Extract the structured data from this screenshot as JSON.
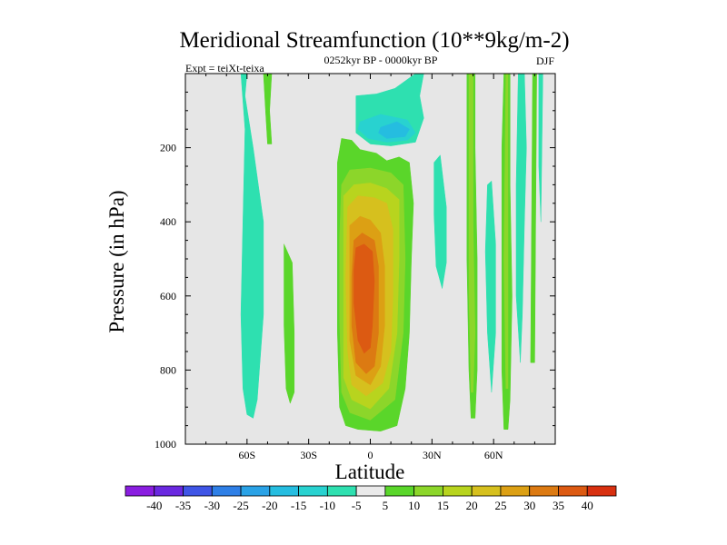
{
  "chart_data": {
    "type": "heatmap",
    "title": "Meridional Streamfunction (10**9kg/m-2)",
    "subtitle": "0252kyr BP - 0000kyr BP",
    "left_label": "Expt = teiXt-teixa",
    "right_label": "DJF",
    "xlabel": "Latitude",
    "ylabel": "Pressure (in hPa)",
    "xlim": [
      -90,
      90
    ],
    "ylim": [
      0,
      1000
    ],
    "y_reversed": true,
    "x_ticks": [
      {
        "value": -60,
        "label": "60S"
      },
      {
        "value": -30,
        "label": "30S"
      },
      {
        "value": 0,
        "label": "0"
      },
      {
        "value": 30,
        "label": "30N"
      },
      {
        "value": 60,
        "label": "60N"
      }
    ],
    "y_ticks": [
      {
        "value": 200,
        "label": "200"
      },
      {
        "value": 400,
        "label": "400"
      },
      {
        "value": 600,
        "label": "600"
      },
      {
        "value": 800,
        "label": "800"
      },
      {
        "value": 1000,
        "label": "1000"
      }
    ],
    "background_color": "#e6e6e6",
    "colorbar": {
      "levels": [
        "-40",
        "-35",
        "-30",
        "-25",
        "-20",
        "-15",
        "-10",
        "-5",
        "5",
        "10",
        "15",
        "20",
        "25",
        "30",
        "35",
        "40"
      ],
      "colors": [
        "#8a1ee0",
        "#6a28e0",
        "#3f55e6",
        "#2e7fe6",
        "#2aa2e6",
        "#25bde0",
        "#28d2d0",
        "#2ee0b0",
        "#eaeaea",
        "#5ad62a",
        "#8cd62a",
        "#b8d41e",
        "#d6c01e",
        "#dca014",
        "#dc7a12",
        "#dc5a12",
        "#d83010"
      ]
    },
    "contours": [
      {
        "level": -5,
        "color": "#2ee0b0",
        "polygon": [
          [
            -63,
            0
          ],
          [
            -60,
            0
          ],
          [
            -61,
            60
          ],
          [
            -57,
            200
          ],
          [
            -52,
            400
          ],
          [
            -52,
            650
          ],
          [
            -55,
            880
          ],
          [
            -57,
            930
          ],
          [
            -60,
            920
          ],
          [
            -62,
            850
          ],
          [
            -63,
            650
          ],
          [
            -62,
            400
          ],
          [
            -61,
            150
          ]
        ]
      },
      {
        "level": -5,
        "color": "#2ee0b0",
        "polygon": [
          [
            -7,
            60
          ],
          [
            3,
            55
          ],
          [
            12,
            40
          ],
          [
            22,
            0
          ],
          [
            26,
            0
          ],
          [
            24,
            60
          ],
          [
            26,
            120
          ],
          [
            22,
            185
          ],
          [
            10,
            195
          ],
          [
            0,
            190
          ],
          [
            -7,
            160
          ]
        ]
      },
      {
        "level": -10,
        "color": "#28d2d0",
        "polygon": [
          [
            -5,
            130
          ],
          [
            5,
            110
          ],
          [
            18,
            125
          ],
          [
            22,
            160
          ],
          [
            18,
            180
          ],
          [
            8,
            185
          ],
          [
            -1,
            175
          ],
          [
            -6,
            150
          ]
        ]
      },
      {
        "level": -15,
        "color": "#25bde0",
        "polygon": [
          [
            5,
            145
          ],
          [
            13,
            130
          ],
          [
            19,
            150
          ],
          [
            17,
            170
          ],
          [
            8,
            175
          ],
          [
            4,
            160
          ]
        ]
      },
      {
        "level": -5,
        "color": "#2ee0b0",
        "polygon": [
          [
            31,
            240
          ],
          [
            34,
            220
          ],
          [
            37,
            360
          ],
          [
            37,
            510
          ],
          [
            35,
            580
          ],
          [
            32,
            520
          ],
          [
            31,
            380
          ]
        ]
      },
      {
        "level": -5,
        "color": "#2ee0b0",
        "polygon": [
          [
            57,
            300
          ],
          [
            59,
            290
          ],
          [
            61,
            460
          ],
          [
            61,
            700
          ],
          [
            59,
            860
          ],
          [
            57,
            700
          ],
          [
            56,
            480
          ]
        ]
      },
      {
        "level": -5,
        "color": "#2ee0b0",
        "polygon": [
          [
            72,
            0
          ],
          [
            75,
            0
          ],
          [
            76,
            200
          ],
          [
            75,
            400
          ],
          [
            74,
            650
          ],
          [
            73,
            780
          ],
          [
            71,
            600
          ],
          [
            71,
            300
          ]
        ]
      },
      {
        "level": -5,
        "color": "#2ee0b0",
        "polygon": [
          [
            82,
            0
          ],
          [
            84,
            0
          ],
          [
            83,
            400
          ],
          [
            82,
            250
          ]
        ]
      },
      {
        "level": 5,
        "color": "#5ad62a",
        "polygon": [
          [
            -52,
            0
          ],
          [
            -48,
            0
          ],
          [
            -49,
            100
          ],
          [
            -48,
            190
          ],
          [
            -50,
            190
          ],
          [
            -51,
            100
          ]
        ]
      },
      {
        "level": 5,
        "color": "#5ad62a",
        "polygon": [
          [
            -42,
            460
          ],
          [
            -38,
            510
          ],
          [
            -37,
            700
          ],
          [
            -37,
            860
          ],
          [
            -39,
            890
          ],
          [
            -41,
            850
          ],
          [
            -42,
            680
          ]
        ]
      },
      {
        "level": 5,
        "color": "#5ad62a",
        "polygon": [
          [
            -16,
            240
          ],
          [
            -14,
            175
          ],
          [
            -9,
            180
          ],
          [
            -5,
            205
          ],
          [
            3,
            215
          ],
          [
            8,
            235
          ],
          [
            14,
            225
          ],
          [
            19,
            240
          ],
          [
            21,
            350
          ],
          [
            20,
            500
          ],
          [
            19,
            700
          ],
          [
            17,
            850
          ],
          [
            13,
            950
          ],
          [
            5,
            965
          ],
          [
            -6,
            960
          ],
          [
            -12,
            950
          ],
          [
            -15,
            900
          ],
          [
            -16,
            700
          ],
          [
            -16,
            500
          ]
        ]
      },
      {
        "level": 10,
        "color": "#8cd62a",
        "polygon": [
          [
            -14,
            300
          ],
          [
            -10,
            260
          ],
          [
            0,
            255
          ],
          [
            10,
            268
          ],
          [
            16,
            300
          ],
          [
            17,
            500
          ],
          [
            16,
            700
          ],
          [
            12,
            880
          ],
          [
            0,
            935
          ],
          [
            -10,
            915
          ],
          [
            -14,
            860
          ],
          [
            -15,
            650
          ],
          [
            -15,
            450
          ]
        ]
      },
      {
        "level": 15,
        "color": "#b8d41e",
        "polygon": [
          [
            -13,
            330
          ],
          [
            -8,
            300
          ],
          [
            0,
            295
          ],
          [
            8,
            310
          ],
          [
            14,
            340
          ],
          [
            14,
            500
          ],
          [
            13,
            700
          ],
          [
            9,
            850
          ],
          [
            0,
            905
          ],
          [
            -9,
            880
          ],
          [
            -13,
            820
          ],
          [
            -13,
            600
          ]
        ]
      },
      {
        "level": 20,
        "color": "#d6c01e",
        "polygon": [
          [
            -11,
            360
          ],
          [
            -6,
            330
          ],
          [
            2,
            335
          ],
          [
            8,
            350
          ],
          [
            11,
            420
          ],
          [
            11,
            600
          ],
          [
            10,
            750
          ],
          [
            6,
            835
          ],
          [
            -2,
            870
          ],
          [
            -9,
            840
          ],
          [
            -11,
            750
          ],
          [
            -12,
            550
          ]
        ]
      },
      {
        "level": 25,
        "color": "#dca014",
        "polygon": [
          [
            -10,
            410
          ],
          [
            -5,
            385
          ],
          [
            0,
            395
          ],
          [
            5,
            430
          ],
          [
            7,
            520
          ],
          [
            7,
            680
          ],
          [
            5,
            790
          ],
          [
            0,
            840
          ],
          [
            -7,
            815
          ],
          [
            -10,
            720
          ],
          [
            -10,
            550
          ]
        ]
      },
      {
        "level": 30,
        "color": "#dc7a12",
        "polygon": [
          [
            -8,
            450
          ],
          [
            -4,
            430
          ],
          [
            2,
            450
          ],
          [
            4,
            520
          ],
          [
            4,
            700
          ],
          [
            2,
            790
          ],
          [
            -2,
            810
          ],
          [
            -7,
            780
          ],
          [
            -9,
            680
          ],
          [
            -9,
            550
          ]
        ]
      },
      {
        "level": 35,
        "color": "#dc5a12",
        "polygon": [
          [
            -7,
            470
          ],
          [
            -3,
            460
          ],
          [
            1,
            480
          ],
          [
            2,
            560
          ],
          [
            1,
            680
          ],
          [
            0,
            740
          ],
          [
            -3,
            755
          ],
          [
            -6,
            720
          ],
          [
            -8,
            620
          ],
          [
            -8,
            530
          ]
        ]
      },
      {
        "level": 5,
        "color": "#5ad62a",
        "polygon": [
          [
            47,
            0
          ],
          [
            51,
            0
          ],
          [
            51,
            200
          ],
          [
            52,
            500
          ],
          [
            52,
            800
          ],
          [
            51,
            930
          ],
          [
            49,
            930
          ],
          [
            48,
            800
          ],
          [
            47,
            500
          ],
          [
            47,
            200
          ]
        ]
      },
      {
        "level": 10,
        "color": "#8cd62a",
        "polygon": [
          [
            48,
            0
          ],
          [
            50,
            0
          ],
          [
            50,
            400
          ],
          [
            51,
            700
          ],
          [
            50,
            860
          ],
          [
            49,
            860
          ],
          [
            48,
            600
          ]
        ]
      },
      {
        "level": 5,
        "color": "#5ad62a",
        "polygon": [
          [
            65,
            0
          ],
          [
            68,
            0
          ],
          [
            68,
            300
          ],
          [
            69,
            600
          ],
          [
            68,
            880
          ],
          [
            67,
            960
          ],
          [
            65,
            960
          ],
          [
            64,
            800
          ],
          [
            64,
            500
          ],
          [
            64,
            200
          ]
        ]
      },
      {
        "level": 10,
        "color": "#8cd62a",
        "polygon": [
          [
            66,
            0
          ],
          [
            67,
            0
          ],
          [
            67,
            500
          ],
          [
            67,
            850
          ],
          [
            66,
            850
          ],
          [
            65,
            500
          ]
        ]
      },
      {
        "level": 5,
        "color": "#5ad62a",
        "polygon": [
          [
            79,
            0
          ],
          [
            81,
            0
          ],
          [
            80,
            780
          ],
          [
            78,
            780
          ]
        ]
      }
    ]
  }
}
